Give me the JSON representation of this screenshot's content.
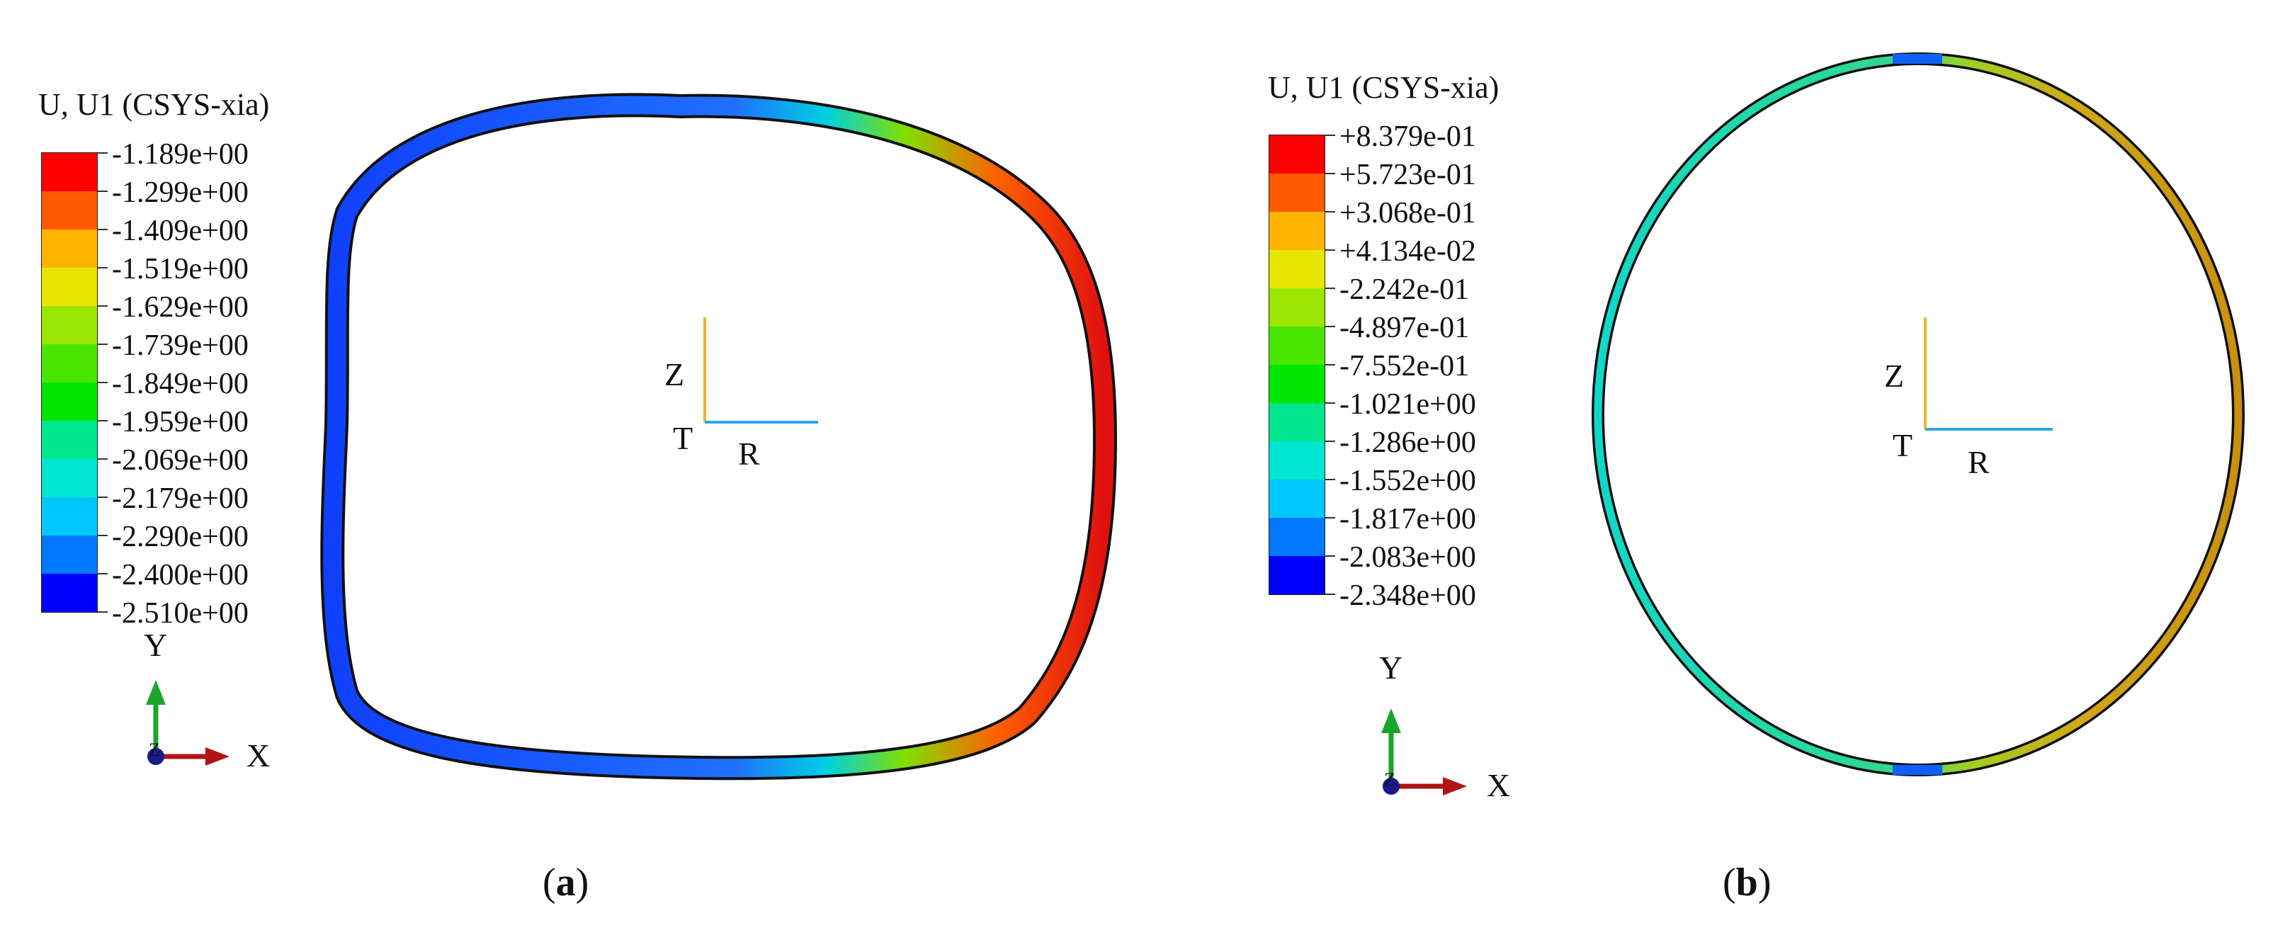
{
  "panel_a": {
    "legend_title": "U, U1 (CSYS-xia)",
    "ticks": [
      "-1.189e+00",
      "-1.299e+00",
      "-1.409e+00",
      "-1.519e+00",
      "-1.629e+00",
      "-1.739e+00",
      "-1.849e+00",
      "-1.959e+00",
      "-2.069e+00",
      "-2.179e+00",
      "-2.290e+00",
      "-2.400e+00",
      "-2.510e+00"
    ],
    "triad": {
      "y": "Y",
      "x": "X",
      "z": "Z"
    },
    "local_axes": {
      "z": "Z",
      "t": "T",
      "r": "R"
    },
    "caption_open": "(",
    "caption_letter": "a",
    "caption_close": ")"
  },
  "panel_b": {
    "legend_title": "U, U1 (CSYS-xia)",
    "ticks": [
      "+8.379e-01",
      "+5.723e-01",
      "+3.068e-01",
      "+4.134e-02",
      "-2.242e-01",
      "-4.897e-01",
      "-7.552e-01",
      "-1.021e+00",
      "-1.286e+00",
      "-1.552e+00",
      "-1.817e+00",
      "-2.083e+00",
      "-2.348e+00"
    ],
    "triad": {
      "y": "Y",
      "x": "X",
      "z": "Z"
    },
    "local_axes": {
      "z": "Z",
      "t": "T",
      "r": "R"
    },
    "caption_open": "(",
    "caption_letter": "b",
    "caption_close": ")"
  },
  "colors": {
    "contour_scale": [
      "#ff0000",
      "#ff5a00",
      "#ffb400",
      "#e6e600",
      "#9be600",
      "#4be600",
      "#00e600",
      "#00e68c",
      "#00e6d2",
      "#00c8ff",
      "#0078ff",
      "#003cff",
      "#0000ff"
    ],
    "local_z_axis": "#f0b428",
    "local_r_axis": "#28a8e6",
    "triad_y": "#1aa62a",
    "triad_x": "#b01414",
    "triad_z": "#1a1a8c"
  }
}
